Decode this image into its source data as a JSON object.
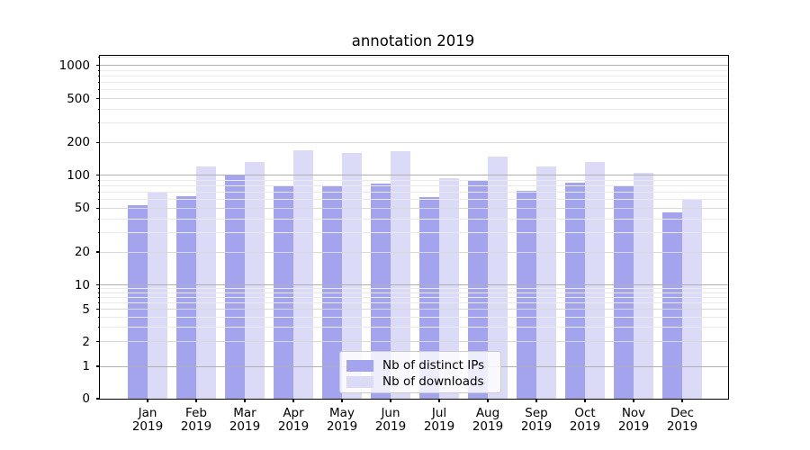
{
  "figure": {
    "background": "#ffffff",
    "axis_color": "#000000",
    "text_color": "#000000"
  },
  "chart_data": {
    "type": "bar",
    "title": "annotation 2019",
    "categories": [
      "Jan",
      "Feb",
      "Mar",
      "Apr",
      "May",
      "Jun",
      "Jul",
      "Aug",
      "Sep",
      "Oct",
      "Nov",
      "Dec"
    ],
    "x_year_label": "2019",
    "series": [
      {
        "key": "distinct-ips",
        "name": "Nb of distinct IPs",
        "color": "#a4a4ee",
        "values": [
          53,
          64,
          100,
          79,
          80,
          84,
          63,
          90,
          72,
          85,
          81,
          46
        ]
      },
      {
        "key": "downloads",
        "name": "Nb of downloads",
        "color": "#dbdbf8",
        "values": [
          69,
          120,
          132,
          168,
          160,
          165,
          94,
          148,
          120,
          133,
          105,
          61
        ]
      }
    ],
    "yscale": "symlog",
    "ylim": [
      0,
      1220
    ],
    "y_ticks": [
      0,
      1,
      2,
      5,
      10,
      20,
      50,
      100,
      200,
      500,
      1000
    ],
    "y_minor_ticks": [
      3,
      4,
      6,
      7,
      8,
      9,
      30,
      40,
      60,
      70,
      80,
      90,
      300,
      400,
      600,
      700,
      800,
      900,
      1200
    ],
    "grid": true,
    "legend_position": "lower center",
    "grid_colors": {
      "decade": "#b0b0b0",
      "labeled": "#d8d8d8",
      "minor": "#eaeaea"
    }
  }
}
